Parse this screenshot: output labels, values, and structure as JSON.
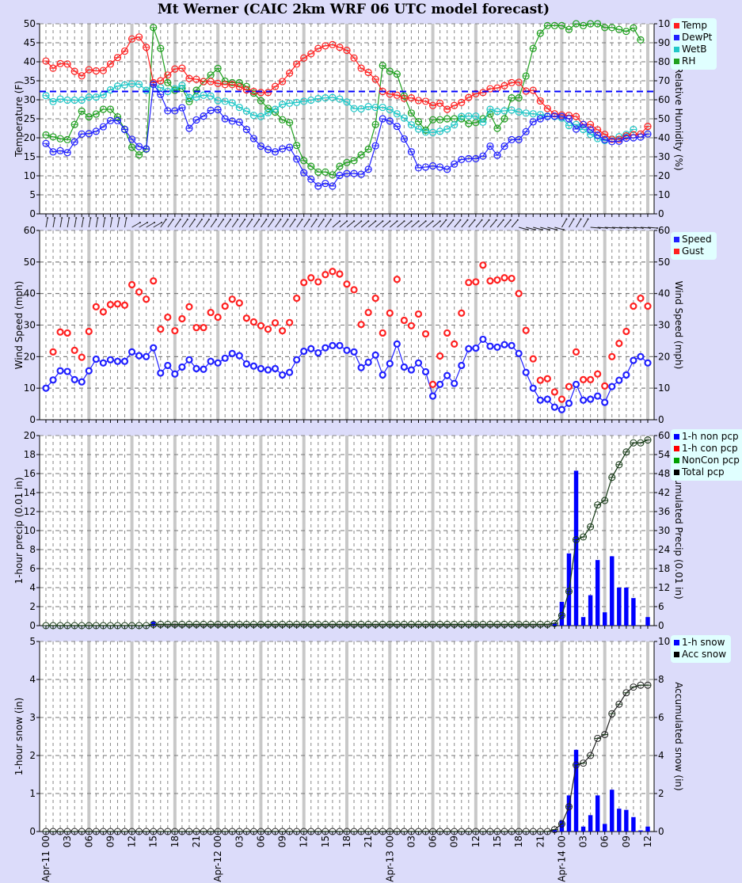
{
  "title": "Mt Werner (CAIC 2km WRF 06 UTC model forecast)",
  "colors": {
    "temp": "#ff2020",
    "dewpt": "#2020ff",
    "wetb": "#20c8c8",
    "rh": "#20a020",
    "speed": "#2020ff",
    "gust": "#ff2020",
    "bar": "#0000ff",
    "acc": "#202020",
    "freezing": "#0000ff",
    "background": "#dcdcfa",
    "legend_bg": "#e0ffff",
    "major_grid": "#c8c8c8"
  },
  "x_axis": {
    "hours": 61,
    "tick_labels": [
      "00",
      "03",
      "06",
      "09",
      "12",
      "15",
      "18",
      "21",
      "00",
      "03",
      "06",
      "09",
      "12",
      "15",
      "18",
      "21",
      "00",
      "03",
      "06",
      "09",
      "12",
      "15",
      "18",
      "21",
      "00",
      "03",
      "06",
      "09",
      "12"
    ],
    "date_labels": [
      {
        "hour": 0,
        "label": "Apr-11"
      },
      {
        "hour": 24,
        "label": "Apr-12"
      },
      {
        "hour": 48,
        "label": "Apr-13"
      },
      {
        "hour": 72,
        "label": "Apr-14"
      }
    ]
  },
  "legends": {
    "temp": [
      "Temp",
      "DewPt",
      "WetB",
      "RH"
    ],
    "wind": [
      "Speed",
      "Gust"
    ],
    "precip": [
      "1-h non pcp",
      "1-h con pcp",
      "NonCon pcp",
      "Total pcp"
    ],
    "snow": [
      "1-h snow",
      "Acc snow"
    ]
  },
  "chart_data": [
    {
      "type": "line",
      "title": "Mt Werner (CAIC 2km WRF 06 UTC model forecast)",
      "xlabel": "",
      "ylabel": "Temperature (F)",
      "y2label": "Relative Humidity (%)",
      "ylim": [
        0,
        50
      ],
      "y2lim": [
        0,
        100
      ],
      "yticks": [
        0,
        5,
        10,
        15,
        20,
        25,
        30,
        35,
        40,
        45,
        50
      ],
      "y2ticks": [
        0,
        10,
        20,
        30,
        40,
        50,
        60,
        70,
        80,
        90,
        100
      ],
      "freezing_line": 32.2,
      "series": [
        {
          "name": "Temp",
          "axis": "left",
          "values": [
            40.2,
            38.3,
            39.5,
            39.4,
            37.5,
            36.3,
            37.9,
            37.6,
            37.7,
            39.4,
            41.1,
            42.8,
            46,
            46.5,
            43.8,
            34.5,
            35,
            36.5,
            38.1,
            38.3,
            35.6,
            35.4,
            34.8,
            34.8,
            34.3,
            34,
            34,
            33.4,
            32.6,
            32.2,
            31.9,
            31.9,
            33.5,
            34.8,
            37,
            39.4,
            41,
            42.1,
            43.5,
            44.2,
            44.5,
            43.8,
            43,
            41,
            38.3,
            37.2,
            35.4,
            32.2,
            31.5,
            31.2,
            30.4,
            30.5,
            29.8,
            29.6,
            28.5,
            29.1,
            27.5,
            28.5,
            29.3,
            30.6,
            31.6,
            31.9,
            32.9,
            33.1,
            33.7,
            34.5,
            34.6,
            32.3,
            32.5,
            29.7,
            27.7,
            26.3,
            26,
            25.9,
            25.6,
            23.5,
            23.5,
            22.1,
            20.9,
            19.6,
            19.6,
            20.5,
            20.8,
            21,
            23
          ]
        },
        {
          "name": "DewPt",
          "axis": "left",
          "values": [
            18.5,
            16.3,
            16.6,
            16.1,
            18.9,
            21,
            21.1,
            21.7,
            22.9,
            24.5,
            24.5,
            22.2,
            19.6,
            17.7,
            17.1,
            34.1,
            31.4,
            27.1,
            27.1,
            27.9,
            22.5,
            24.7,
            25.7,
            27.2,
            27.4,
            25,
            24.4,
            24.1,
            22.2,
            19.8,
            17.8,
            16.9,
            16.3,
            17.1,
            17.5,
            14.4,
            10.8,
            9.1,
            7.3,
            8,
            7.3,
            10.1,
            10.6,
            10.6,
            10.4,
            11.7,
            17.9,
            25,
            24.4,
            23,
            19.7,
            16.3,
            12.1,
            12.3,
            12.6,
            12.3,
            11.7,
            13.1,
            14.3,
            14.5,
            14.5,
            15.2,
            17.8,
            15.4,
            17.8,
            19.5,
            19.5,
            21.6,
            24.2,
            25,
            25.6,
            25.7,
            25.6,
            25,
            22.3,
            23.5,
            22.1,
            20.7,
            19.5,
            19,
            19.1,
            19.9,
            20,
            20.2,
            21
          ]
        },
        {
          "name": "WetB",
          "axis": "left",
          "values": [
            31.1,
            29.5,
            30.2,
            29.9,
            29.9,
            29.9,
            30.7,
            30.7,
            31.3,
            32.6,
            33.6,
            33.9,
            34.2,
            34.1,
            32.5,
            34,
            33.2,
            32.2,
            32.9,
            33.8,
            30.6,
            30.7,
            31.2,
            31,
            29.8,
            29.6,
            29.2,
            28,
            27,
            25.9,
            25.6,
            26.6,
            27.5,
            28.8,
            29.1,
            29.3,
            29.6,
            29.9,
            30.3,
            30.5,
            30.6,
            30.2,
            29.4,
            27.7,
            27.6,
            28.2,
            28,
            28,
            27.4,
            26.3,
            25.2,
            23.4,
            22.3,
            21.5,
            21.4,
            21.7,
            22.3,
            23.4,
            25.6,
            25.7,
            25.7,
            24.1,
            27.5,
            26.9,
            27.1,
            27.3,
            26.8,
            26.5,
            26.3,
            26.1,
            25.7,
            25.6,
            25.2,
            23.2,
            23.5,
            22.2,
            20.9,
            19.8,
            19.3,
            19.7,
            20.3,
            20.9,
            22.2
          ]
        },
        {
          "name": "RH",
          "axis": "right",
          "values": [
            41.5,
            40.5,
            39.5,
            39,
            47,
            54,
            51,
            52.5,
            55,
            55,
            51,
            44.5,
            35,
            31,
            34,
            98,
            87,
            69,
            65,
            66,
            59,
            65,
            69.5,
            73,
            76.5,
            69.8,
            69,
            69,
            67,
            63.5,
            59.5,
            55.5,
            53.5,
            49.5,
            48,
            36,
            28,
            25,
            22,
            22,
            20.5,
            25,
            27,
            28,
            31,
            34,
            47,
            78,
            75,
            73.5,
            62,
            53,
            48.5,
            44,
            49.5,
            49.5,
            50,
            50,
            50,
            47.5,
            48,
            50,
            52.5,
            45,
            50,
            61,
            61,
            72.5,
            87,
            95,
            99,
            99,
            99,
            97,
            100,
            99,
            100,
            100,
            98,
            98,
            97,
            96,
            97.8,
            91.5
          ]
        }
      ]
    },
    {
      "type": "line",
      "xlabel": "",
      "ylabel": "Wind Speed (mph)",
      "y2label": "Wind Speed (mph)",
      "ylim": [
        0,
        60
      ],
      "yticks": [
        0,
        10,
        20,
        30,
        40,
        50,
        60
      ],
      "series": [
        {
          "name": "Speed",
          "values": [
            10,
            12.6,
            15.5,
            15.3,
            12.7,
            12,
            15.5,
            19.2,
            18,
            19,
            18.5,
            18.5,
            21.5,
            20.3,
            20,
            22.8,
            14.8,
            17.2,
            14.5,
            16.7,
            19,
            16.2,
            16,
            18.5,
            18,
            19.5,
            21,
            20.3,
            17.7,
            17,
            16.2,
            15.8,
            16.2,
            14.2,
            15,
            19,
            21.7,
            22.5,
            21.2,
            22.8,
            23.5,
            23.5,
            22,
            21.5,
            16.5,
            18.2,
            20.5,
            14.2,
            17.8,
            24,
            16.7,
            15.8,
            18,
            15.2,
            7.5,
            11.2,
            14,
            11.5,
            17.2,
            22.5,
            22.7,
            25.5,
            23.3,
            23,
            23.8,
            23.5,
            21,
            15,
            10,
            6.2,
            6.5,
            4,
            3.2,
            5.2,
            11.2,
            6.2,
            6.5,
            7.5,
            5.5,
            10.5,
            12.5,
            14.2,
            18.8,
            20,
            18
          ]
        },
        {
          "name": "Gust",
          "values": [
            null,
            21.5,
            27.8,
            27.5,
            22,
            19.8,
            28,
            35.8,
            34.2,
            36.5,
            36.7,
            36.3,
            42.8,
            40.5,
            38.2,
            44,
            28.7,
            32.5,
            28.2,
            32,
            35.8,
            29.2,
            29.2,
            34,
            32.5,
            36,
            38.2,
            37,
            32.2,
            31,
            29.8,
            28.7,
            30.7,
            28.2,
            30.8,
            38.5,
            43.5,
            45,
            43.7,
            46,
            47,
            46.2,
            43,
            41.2,
            30.2,
            34,
            38.5,
            27.5,
            33.8,
            44.5,
            31.5,
            29.8,
            33.5,
            27.2,
            11.2,
            20.2,
            27.5,
            24,
            33.8,
            43.5,
            43.7,
            49,
            44,
            44.3,
            45,
            44.8,
            40,
            28.3,
            19.3,
            12.5,
            13,
            8.8,
            6.5,
            10.5,
            21.5,
            12.7,
            12.7,
            14.5,
            10.7,
            20,
            24.2,
            28,
            36,
            38.5,
            36
          ]
        }
      ],
      "wind_direction_arrows": "row of direction arrows above panel; mostly SW-to-NE, turning westerly late Apr-13/Apr-14"
    },
    {
      "type": "bar",
      "xlabel": "",
      "ylabel": "1-hour precip (0.01 in)",
      "y2label": "Accumulated Precip (0.01 in)",
      "ylim": [
        0,
        20
      ],
      "y2lim": [
        0,
        60
      ],
      "yticks": [
        0,
        2,
        4,
        6,
        8,
        10,
        12,
        14,
        16,
        18,
        20
      ],
      "y2ticks": [
        0,
        6,
        12,
        18,
        24,
        30,
        36,
        42,
        48,
        54,
        60
      ],
      "series": [
        {
          "name": "1-h non pcp",
          "type": "bar",
          "values": [
            0,
            0,
            0,
            0,
            0,
            0,
            0,
            0,
            0,
            0,
            0,
            0,
            0,
            0,
            0,
            0.4,
            0,
            0,
            0,
            0,
            0,
            0,
            0,
            0,
            0,
            0,
            0,
            0,
            0,
            0,
            0,
            0,
            0,
            0,
            0,
            0,
            0,
            0,
            0,
            0,
            0,
            0,
            0,
            0,
            0,
            0,
            0,
            0,
            0,
            0,
            0,
            0,
            0,
            0,
            0,
            0,
            0,
            0,
            0,
            0,
            0,
            0,
            0,
            0,
            0,
            0,
            0,
            0,
            0,
            0,
            0,
            0.3,
            2.5,
            7.6,
            16.3,
            0.9,
            3.2,
            6.9,
            1.4,
            7.3,
            4,
            4,
            2.9,
            0,
            0.9
          ]
        },
        {
          "name": "1-h con pcp",
          "type": "bar",
          "values": []
        },
        {
          "name": "NonCon pcp",
          "type": "line",
          "values": []
        },
        {
          "name": "Total pcp",
          "type": "line",
          "axis": "right",
          "values": [
            0,
            0,
            0,
            0,
            0,
            0,
            0,
            0,
            0,
            0,
            0,
            0,
            0,
            0,
            0,
            0.4,
            0.4,
            0.4,
            0.4,
            0.4,
            0.4,
            0.4,
            0.4,
            0.4,
            0.4,
            0.4,
            0.4,
            0.4,
            0.4,
            0.4,
            0.4,
            0.4,
            0.4,
            0.4,
            0.4,
            0.4,
            0.4,
            0.4,
            0.4,
            0.4,
            0.4,
            0.4,
            0.4,
            0.4,
            0.4,
            0.4,
            0.4,
            0.4,
            0.4,
            0.4,
            0.4,
            0.4,
            0.4,
            0.4,
            0.4,
            0.4,
            0.4,
            0.4,
            0.4,
            0.4,
            0.4,
            0.4,
            0.4,
            0.4,
            0.4,
            0.4,
            0.4,
            0.4,
            0.4,
            0.4,
            0.4,
            0.7,
            3.2,
            10.8,
            27.1,
            28,
            31.2,
            38.1,
            39.5,
            46.8,
            50.8,
            54.8,
            57.7,
            57.7,
            58.6
          ]
        }
      ]
    },
    {
      "type": "bar",
      "xlabel": "",
      "ylabel": "1-hour snow (in)",
      "y2label": "Accumulated snow (in)",
      "ylim": [
        0,
        5
      ],
      "y2lim": [
        0,
        10
      ],
      "yticks": [
        0,
        1,
        2,
        3,
        4,
        5
      ],
      "y2ticks": [
        0,
        2,
        4,
        6,
        8,
        10
      ],
      "series": [
        {
          "name": "1-h snow",
          "type": "bar",
          "values": [
            0,
            0,
            0,
            0,
            0,
            0,
            0,
            0,
            0,
            0,
            0,
            0,
            0,
            0,
            0,
            0,
            0,
            0,
            0,
            0,
            0,
            0,
            0,
            0,
            0,
            0,
            0,
            0,
            0,
            0,
            0,
            0,
            0,
            0,
            0,
            0,
            0,
            0,
            0,
            0,
            0,
            0,
            0,
            0,
            0,
            0,
            0,
            0,
            0,
            0,
            0,
            0,
            0,
            0,
            0,
            0,
            0,
            0,
            0,
            0,
            0,
            0,
            0,
            0,
            0,
            0,
            0,
            0,
            0,
            0,
            0,
            0.05,
            0.3,
            0.95,
            2.15,
            0.13,
            0.43,
            0.95,
            0.2,
            1.1,
            0.6,
            0.57,
            0.38,
            0.03,
            0.13
          ]
        },
        {
          "name": "Acc snow",
          "type": "line",
          "axis": "right",
          "values": [
            0,
            0,
            0,
            0,
            0,
            0,
            0,
            0,
            0,
            0,
            0,
            0,
            0,
            0,
            0,
            0,
            0,
            0,
            0,
            0,
            0,
            0,
            0,
            0,
            0,
            0,
            0,
            0,
            0,
            0,
            0,
            0,
            0,
            0,
            0,
            0,
            0,
            0,
            0,
            0,
            0,
            0,
            0,
            0,
            0,
            0,
            0,
            0,
            0,
            0,
            0,
            0,
            0,
            0,
            0,
            0,
            0,
            0,
            0,
            0,
            0,
            0,
            0,
            0,
            0,
            0,
            0,
            0,
            0,
            0,
            0,
            0.1,
            0.4,
            1.3,
            3.5,
            3.6,
            4,
            4.9,
            5.1,
            6.2,
            6.7,
            7.3,
            7.6,
            7.7,
            7.7
          ]
        }
      ]
    }
  ]
}
